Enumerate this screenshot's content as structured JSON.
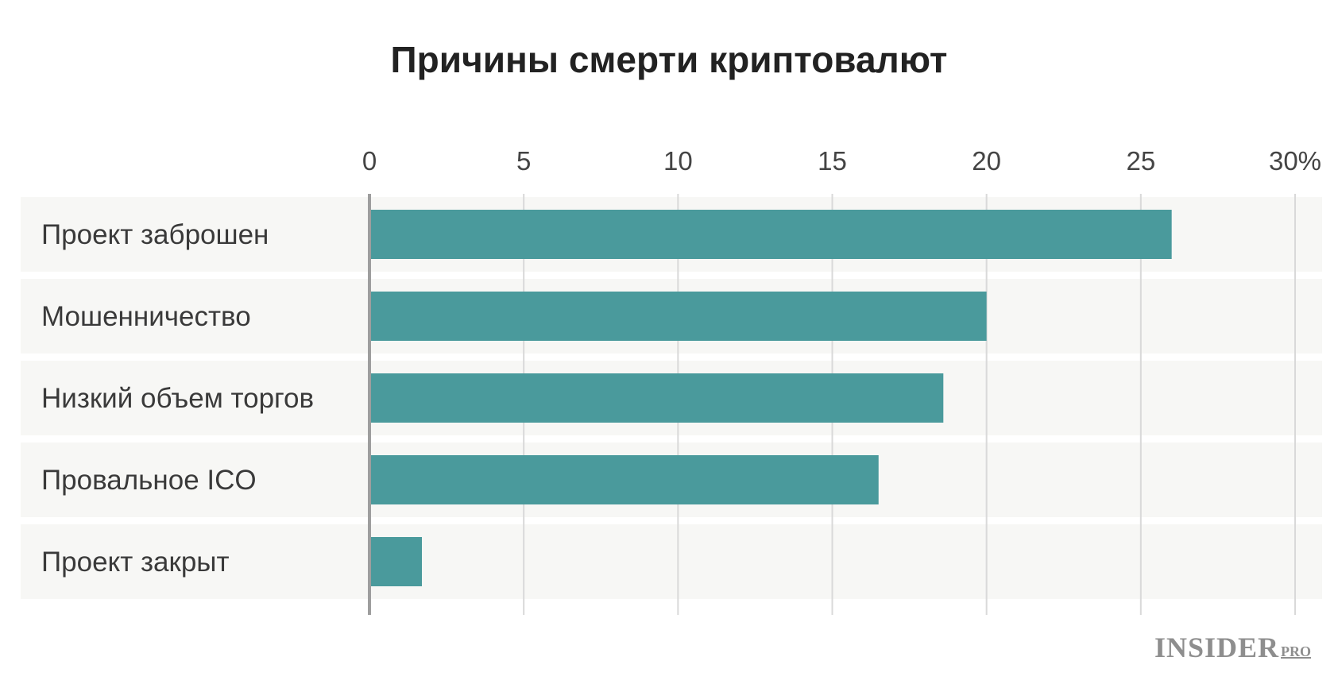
{
  "chart_data": {
    "type": "bar",
    "orientation": "horizontal",
    "title": "Причины смерти криптовалют",
    "categories": [
      "Проект заброшен",
      "Мошенничество",
      "Низкий объем торгов",
      "Провальное ICO",
      "Проект закрыт"
    ],
    "values": [
      26,
      20,
      18.6,
      16.5,
      1.7
    ],
    "x_ticks": [
      "0",
      "5",
      "10",
      "15",
      "20",
      "25",
      "30%"
    ],
    "xlim": [
      0,
      30
    ],
    "grid": true,
    "bar_color": "#4a9a9c",
    "row_background": "#f7f7f5"
  },
  "brand": {
    "main": "INSIDER",
    "sub": "PRO"
  }
}
